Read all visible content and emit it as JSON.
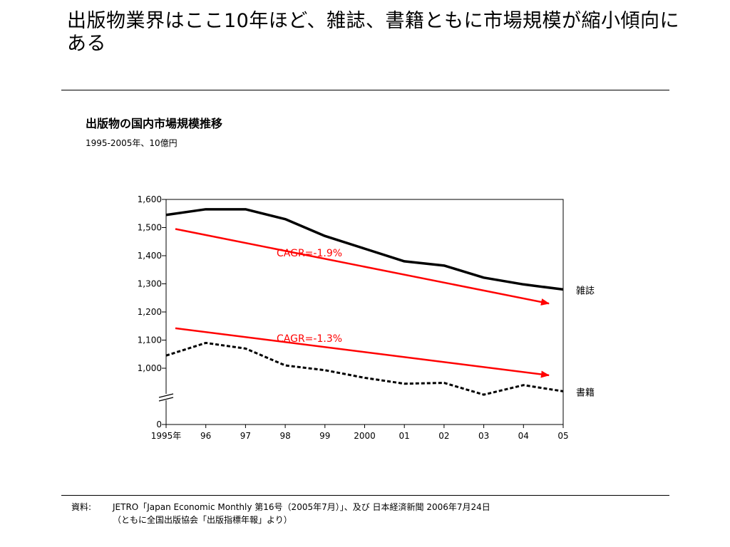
{
  "slide": {
    "title": "出版物業界はここ10年ほど、雑誌、書籍ともに市場規模が縮小傾向にある"
  },
  "chart_data": {
    "type": "line",
    "title": "出版物の国内市場規模推移",
    "subtitle": "1995-2005年、10億円",
    "categories": [
      "1995年",
      "96",
      "97",
      "98",
      "99",
      "2000",
      "01",
      "02",
      "03",
      "04",
      "05"
    ],
    "y_ticks": [
      "1,600",
      "1,500",
      "1,400",
      "1,300",
      "1,200",
      "1,100",
      "1,000",
      "0"
    ],
    "ylim": [
      0,
      1600
    ],
    "axis_break": true,
    "grid": false,
    "series": [
      {
        "name": "雑誌",
        "style": "solid",
        "color": "#000000",
        "values": [
          1545,
          1565,
          1565,
          1530,
          1470,
          1425,
          1380,
          1365,
          1322,
          1298,
          1280
        ]
      },
      {
        "name": "書籍",
        "style": "dashed",
        "color": "#000000",
        "values": [
          1045,
          1090,
          1070,
          1010,
          993,
          966,
          945,
          948,
          906,
          940,
          918
        ]
      }
    ],
    "annotations": [
      {
        "text": "CAGR=-1.9%",
        "color": "#ff0000",
        "from": [
          1995,
          1495
        ],
        "to": [
          2005,
          1230
        ]
      },
      {
        "text": "CAGR=-1.3%",
        "color": "#ff0000",
        "from": [
          1995,
          1142
        ],
        "to": [
          2005,
          975
        ]
      }
    ]
  },
  "source": {
    "label": "資料:",
    "line1": "JETRO「Japan Economic Monthly 第16号（2005年7月）」、及び 日本経済新聞 2006年7月24日",
    "line2": "（ともに全国出版協会「出版指標年報」より）"
  }
}
